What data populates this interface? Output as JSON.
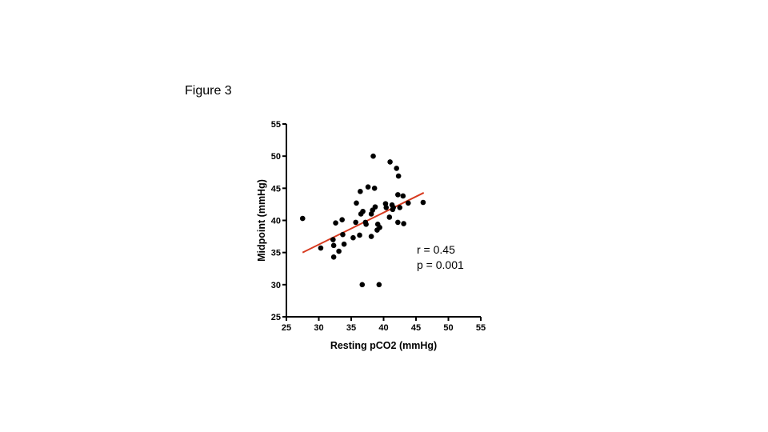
{
  "figure_label": "Figure 3",
  "colors": {
    "points": "#000000",
    "fit_line": "#d73a1f",
    "axes": "#000000"
  },
  "chart_data": {
    "type": "scatter",
    "title": "",
    "xlabel": "Resting pCO2 (mmHg)",
    "ylabel": "Midpoint (mmHg)",
    "xlim": [
      25,
      55
    ],
    "ylim": [
      25,
      55
    ],
    "x_ticks": [
      25,
      30,
      35,
      40,
      45,
      50,
      55
    ],
    "y_ticks": [
      25,
      30,
      35,
      40,
      45,
      50,
      55
    ],
    "grid": false,
    "points": [
      [
        27.5,
        40.3
      ],
      [
        30.3,
        35.7
      ],
      [
        32.2,
        37.0
      ],
      [
        32.3,
        36.1
      ],
      [
        32.3,
        34.3
      ],
      [
        32.6,
        39.6
      ],
      [
        33.1,
        35.2
      ],
      [
        33.6,
        40.1
      ],
      [
        33.7,
        37.8
      ],
      [
        33.9,
        36.3
      ],
      [
        35.3,
        37.3
      ],
      [
        35.7,
        39.7
      ],
      [
        35.8,
        42.7
      ],
      [
        36.3,
        37.7
      ],
      [
        36.4,
        44.5
      ],
      [
        36.5,
        41.0
      ],
      [
        36.7,
        30.0
      ],
      [
        36.8,
        41.4
      ],
      [
        37.2,
        39.7
      ],
      [
        37.3,
        39.4
      ],
      [
        37.6,
        45.2
      ],
      [
        38.1,
        37.5
      ],
      [
        38.1,
        41.0
      ],
      [
        38.3,
        41.6
      ],
      [
        38.4,
        50.0
      ],
      [
        38.6,
        45.0
      ],
      [
        38.7,
        42.1
      ],
      [
        39.0,
        38.5
      ],
      [
        39.1,
        39.4
      ],
      [
        39.3,
        30.0
      ],
      [
        39.4,
        38.9
      ],
      [
        40.3,
        42.6
      ],
      [
        40.4,
        42.0
      ],
      [
        40.9,
        40.5
      ],
      [
        41.0,
        49.1
      ],
      [
        41.3,
        42.4
      ],
      [
        41.4,
        41.7
      ],
      [
        41.5,
        42.0
      ],
      [
        42.0,
        48.1
      ],
      [
        42.2,
        39.7
      ],
      [
        42.2,
        44.0
      ],
      [
        42.3,
        46.9
      ],
      [
        42.5,
        42.0
      ],
      [
        43.1,
        39.5
      ],
      [
        43.0,
        43.8
      ],
      [
        43.8,
        42.7
      ],
      [
        46.1,
        42.8
      ]
    ],
    "fit_line": {
      "x": [
        27.5,
        46.2
      ],
      "y": [
        35.0,
        44.3
      ]
    },
    "annotations": {
      "r": "r = 0.45",
      "p": "p = 0.001"
    }
  }
}
